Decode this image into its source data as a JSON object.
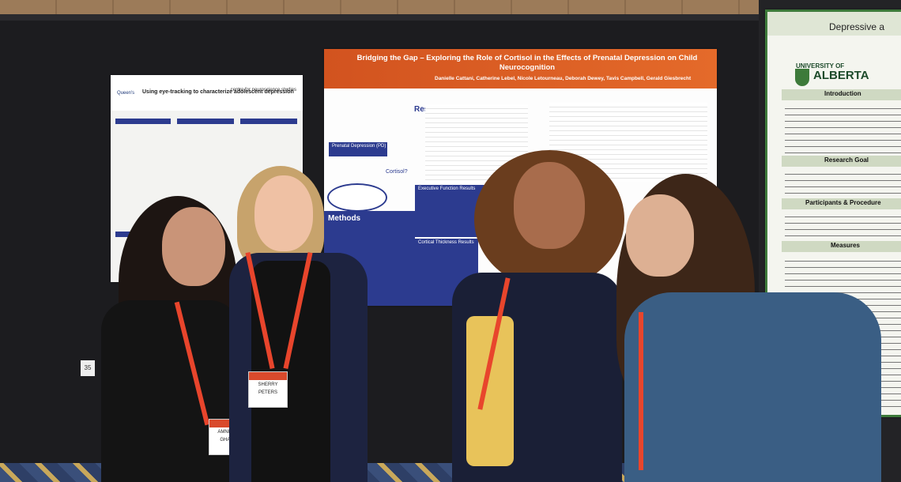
{
  "scene": {
    "description_colors": {
      "board": "#1c1c1f",
      "orange": "#d2531f",
      "blue": "#2c3b8f",
      "green": "#3d7a3a"
    }
  },
  "poster_left": {
    "title": "Using eye-tracking to characterize adolescent depression",
    "logo_left": "Queen's",
    "logo_right": "centre for neuroscience studies"
  },
  "poster_center": {
    "title": "Bridging the Gap – Exploring the Role of Cortisol in the Effects of Prenatal Depression on Child Neurocognition",
    "authors": "Danielle Cattani, Catherine Lebel, Nicole Letourneau, Deborah Dewey, Tavis Campbell, Gerald Giesbrecht",
    "results_heading": "Results",
    "methods_heading": "Methods",
    "box1": "Prenatal Depression (PD)",
    "box2": "Cortisol?",
    "box3": "Executive Function Results",
    "box4": "Cortical Thickness Results"
  },
  "poster_right": {
    "title": "Depressive a",
    "university": "UNIVERSITY OF",
    "university2": "ALBERTA",
    "sections": [
      "Introduction",
      "Research Goal",
      "Participants & Procedure",
      "Measures"
    ]
  },
  "booth_number": "35",
  "badges": [
    {
      "name": "AMNISH",
      "surname": "GHAR"
    },
    {
      "name": "SHERRY",
      "surname": "PETERS"
    }
  ]
}
